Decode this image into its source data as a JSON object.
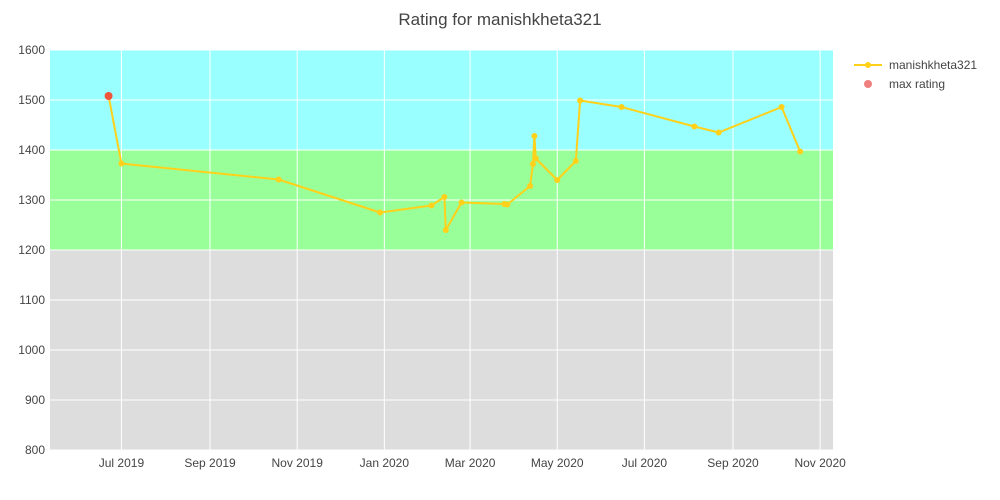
{
  "chart_data": {
    "type": "line",
    "title": "Rating for manishkheta321",
    "xlabel": "",
    "ylabel": "",
    "ylim": [
      800,
      1600
    ],
    "xlim": [
      "2019-05-12",
      "2020-11-10"
    ],
    "x_ticks": [
      {
        "date": "2019-07-01",
        "label": "Jul 2019"
      },
      {
        "date": "2019-09-01",
        "label": "Sep 2019"
      },
      {
        "date": "2019-11-01",
        "label": "Nov 2019"
      },
      {
        "date": "2020-01-01",
        "label": "Jan 2020"
      },
      {
        "date": "2020-03-01",
        "label": "Mar 2020"
      },
      {
        "date": "2020-05-01",
        "label": "May 2020"
      },
      {
        "date": "2020-07-01",
        "label": "Jul 2020"
      },
      {
        "date": "2020-09-01",
        "label": "Sep 2020"
      },
      {
        "date": "2020-11-01",
        "label": "Nov 2020"
      }
    ],
    "y_ticks": [
      800,
      900,
      1000,
      1100,
      1200,
      1300,
      1400,
      1500,
      1600
    ],
    "grid": true,
    "legend_position": "top-right",
    "bands": [
      {
        "from": 800,
        "to": 1200,
        "color": "#dddddd"
      },
      {
        "from": 1200,
        "to": 1400,
        "color": "#99ff99"
      },
      {
        "from": 1400,
        "to": 1600,
        "color": "#99ffff"
      }
    ],
    "series": [
      {
        "name": "manishkheta321",
        "color": "#ffd11a",
        "points": [
          {
            "x": "2019-06-22",
            "y": 1508
          },
          {
            "x": "2019-07-01",
            "y": 1373
          },
          {
            "x": "2019-10-19",
            "y": 1341
          },
          {
            "x": "2019-12-29",
            "y": 1275
          },
          {
            "x": "2020-02-03",
            "y": 1289
          },
          {
            "x": "2020-02-12",
            "y": 1306
          },
          {
            "x": "2020-02-13",
            "y": 1240
          },
          {
            "x": "2020-02-24",
            "y": 1295
          },
          {
            "x": "2020-03-25",
            "y": 1292
          },
          {
            "x": "2020-03-27",
            "y": 1291
          },
          {
            "x": "2020-04-12",
            "y": 1328
          },
          {
            "x": "2020-04-14",
            "y": 1372
          },
          {
            "x": "2020-04-15",
            "y": 1428
          },
          {
            "x": "2020-04-16",
            "y": 1383
          },
          {
            "x": "2020-05-01",
            "y": 1340
          },
          {
            "x": "2020-05-14",
            "y": 1378
          },
          {
            "x": "2020-05-17",
            "y": 1499
          },
          {
            "x": "2020-06-15",
            "y": 1486
          },
          {
            "x": "2020-08-05",
            "y": 1447
          },
          {
            "x": "2020-08-22",
            "y": 1435
          },
          {
            "x": "2020-10-05",
            "y": 1486
          },
          {
            "x": "2020-10-18",
            "y": 1397
          }
        ]
      },
      {
        "name": "max rating",
        "color": "#ef553b",
        "legend_color": "#f08080",
        "mode": "markers",
        "points": [
          {
            "x": "2019-06-22",
            "y": 1508
          }
        ]
      }
    ]
  }
}
